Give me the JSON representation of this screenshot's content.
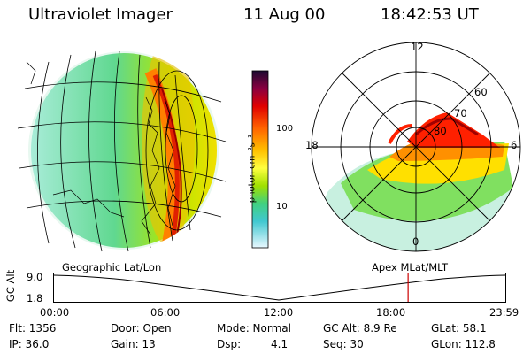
{
  "header": {
    "instrument": "Ultraviolet Imager",
    "date": "11 Aug 00",
    "time": "18:42:53 UT"
  },
  "colorbar": {
    "unit_label": "photon cm⁻²s⁻¹",
    "ticks": [
      "100",
      "10"
    ]
  },
  "polar_plot": {
    "mlt_labels": [
      "12",
      "18",
      "6",
      "0"
    ],
    "lat_labels": [
      "60",
      "70",
      "80"
    ]
  },
  "projection": {
    "left_label": "Geographic Lat/Lon",
    "right_label": "Apex MLat/MLT"
  },
  "orbit_strip": {
    "axis_label": "GC Alt",
    "y_ticks": [
      "9.0",
      "1.8"
    ],
    "x_ticks": [
      "00:00",
      "06:00",
      "12:00",
      "18:00",
      "23:59"
    ],
    "current_time_fraction": 0.785
  },
  "info": {
    "flt": "Flt: 1356",
    "door": "Door: Open",
    "mode": "Mode: Normal",
    "gc_alt": "GC Alt: 8.9 Re",
    "glat": "GLat:  58.1",
    "ip": "IP: 36.0",
    "gain": "Gain: 13",
    "dsp_label": "Dsp:",
    "dsp_value": "4.1",
    "seq": "Seq: 30",
    "glon": "GLon: 112.8"
  },
  "colors": {
    "marker": "#cc0000",
    "grid": "#000000"
  }
}
